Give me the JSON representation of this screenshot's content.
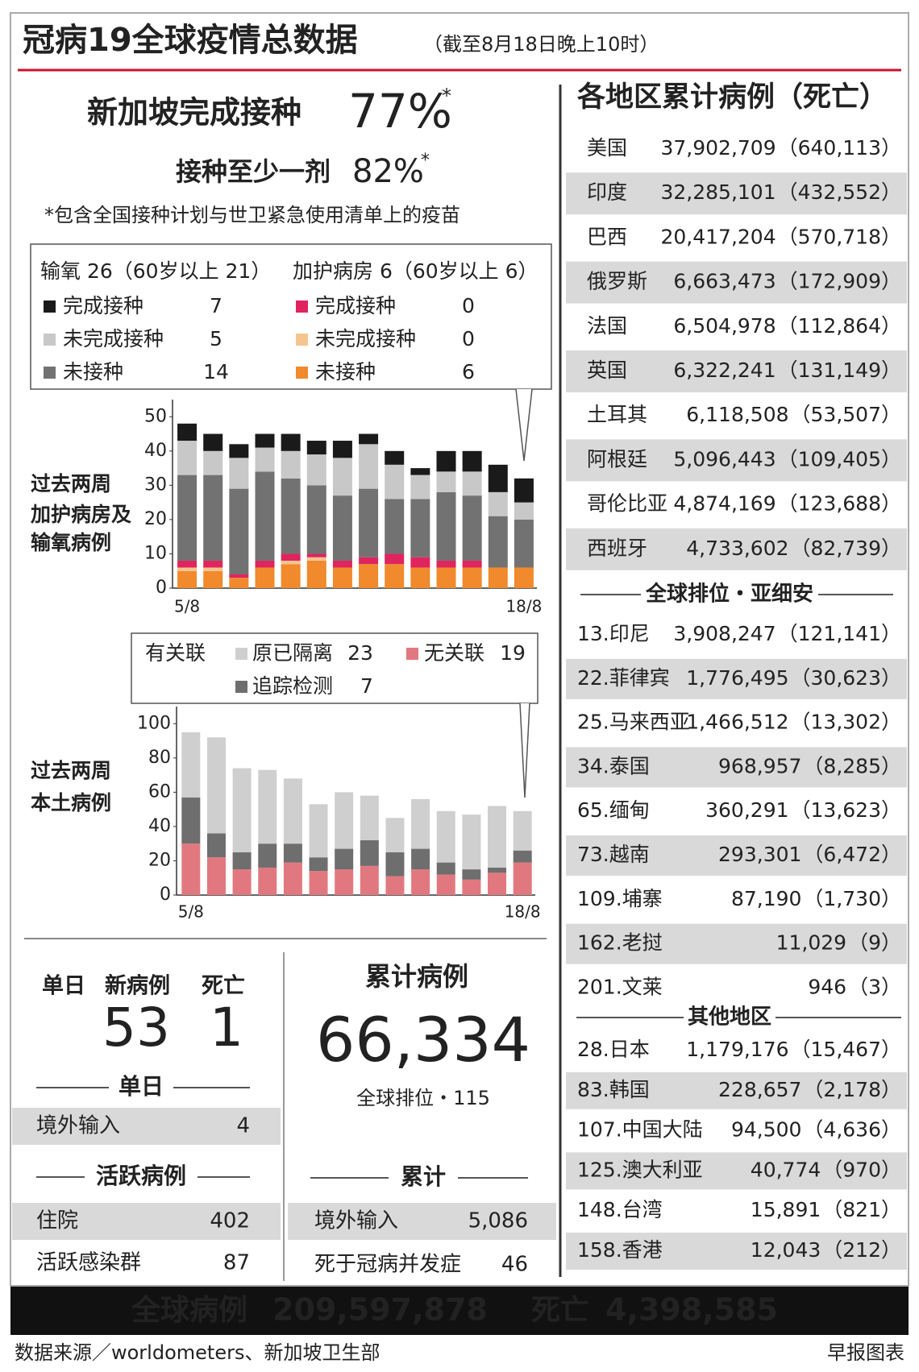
{
  "header": {
    "title": "冠病19全球疫情总数据",
    "subtitle": "（截至8月18日晚上10时）"
  },
  "vaccination": {
    "full_label": "新加坡完成接种",
    "full_value": "77%",
    "partial_label": "接种至少一剂",
    "partial_value": "82%",
    "asterisk": "*",
    "note": "*包含全国接种计划与世卫紧急使用清单上的疫苗"
  },
  "chart_data": [
    {
      "type": "bar",
      "stacked": true,
      "ylabel": [
        "过去两周",
        "加护病房及",
        "输氧病例"
      ],
      "categories": [
        "5/8",
        null,
        null,
        null,
        null,
        null,
        null,
        null,
        null,
        null,
        null,
        null,
        null,
        "18/8"
      ],
      "ylim": [
        0,
        55
      ],
      "yticks": [
        0,
        10,
        20,
        30,
        40,
        50
      ],
      "groups": [
        {
          "title": "输氧 26（60岁以上 21）",
          "series": [
            {
              "name": "完成接种",
              "color": "#1a1a1a",
              "values": [
                5,
                5,
                4,
                4,
                5,
                4,
                5,
                3,
                4,
                2,
                6,
                6,
                8,
                7
              ]
            },
            {
              "name": "未完成接种",
              "color": "#c8c8c8",
              "values": [
                10,
                7,
                9,
                7,
                8,
                9,
                11,
                13,
                10,
                7,
                6,
                7,
                7,
                5
              ]
            },
            {
              "name": "未接种",
              "color": "#727272",
              "values": [
                25,
                25,
                25,
                26,
                22,
                20,
                19,
                20,
                16,
                17,
                20,
                19,
                15,
                14
              ]
            }
          ]
        },
        {
          "title": "加护病房 6（60岁以上 6）",
          "series": [
            {
              "name": "完成接种",
              "color": "#e0245e",
              "values": [
                2,
                2,
                1,
                2,
                2,
                1,
                2,
                2,
                3,
                3,
                2,
                2,
                0,
                0
              ]
            },
            {
              "name": "未完成接种",
              "color": "#f5c48f",
              "values": [
                1,
                1,
                0,
                0,
                1,
                1,
                0,
                0,
                0,
                0,
                0,
                0,
                0,
                0
              ]
            },
            {
              "name": "未接种",
              "color": "#f08a2c",
              "values": [
                5,
                5,
                3,
                6,
                7,
                8,
                6,
                7,
                7,
                6,
                6,
                6,
                6,
                6
              ]
            }
          ]
        }
      ]
    },
    {
      "type": "bar",
      "stacked": true,
      "ylabel": [
        "过去两周",
        "本土病例"
      ],
      "legend_title": "有关联",
      "categories": [
        "5/8",
        null,
        null,
        null,
        null,
        null,
        null,
        null,
        null,
        null,
        null,
        null,
        null,
        "18/8"
      ],
      "ylim": [
        0,
        110
      ],
      "yticks": [
        0,
        20,
        40,
        60,
        80,
        100
      ],
      "series": [
        {
          "name": "无关联",
          "color": "#e2787f",
          "values": [
            30,
            22,
            15,
            16,
            19,
            14,
            15,
            17,
            11,
            15,
            12,
            9,
            13,
            19
          ]
        },
        {
          "name": "追踪检测",
          "color": "#6e6e6e",
          "values": [
            27,
            14,
            10,
            14,
            11,
            8,
            12,
            15,
            14,
            12,
            7,
            6,
            3,
            7
          ]
        },
        {
          "name": "原已隔离",
          "color": "#cfcfcf",
          "values": [
            38,
            56,
            49,
            43,
            38,
            31,
            33,
            26,
            20,
            29,
            30,
            32,
            36,
            23
          ]
        }
      ]
    }
  ],
  "daily": {
    "heading": [
      "单日",
      "新病例",
      "死亡"
    ],
    "new_cases": "53",
    "deaths": "1",
    "section1": "单日",
    "rows1": [
      [
        "境外输入",
        "4"
      ]
    ],
    "section2": "活跃病例",
    "rows2": [
      [
        "住院",
        "402"
      ],
      [
        "活跃感染群",
        "87"
      ]
    ]
  },
  "cumulative": {
    "title": "累计病例",
    "value": "66,334",
    "rank": "全球排位・115",
    "section": "累计",
    "rows": [
      [
        "境外输入",
        "5,086"
      ],
      [
        "死于冠病并发症",
        "46"
      ]
    ]
  },
  "regions": {
    "title": "各地区累计病例（死亡）",
    "top": [
      {
        "name": "美国",
        "cases": "37,902,709",
        "deaths": "（640,113）"
      },
      {
        "name": "印度",
        "cases": "32,285,101",
        "deaths": "（432,552）"
      },
      {
        "name": "巴西",
        "cases": "20,417,204",
        "deaths": "（570,718）"
      },
      {
        "name": "俄罗斯",
        "cases": "6,663,473",
        "deaths": "（172,909）"
      },
      {
        "name": "法国",
        "cases": "6,504,978",
        "deaths": "（112,864）"
      },
      {
        "name": "英国",
        "cases": "6,322,241",
        "deaths": "（131,149）"
      },
      {
        "name": "土耳其",
        "cases": "6,118,508",
        "deaths": "（53,507）"
      },
      {
        "name": "阿根廷",
        "cases": "5,096,443",
        "deaths": "（109,405）"
      },
      {
        "name": "哥伦比亚",
        "cases": "4,874,169",
        "deaths": "（123,688）"
      },
      {
        "name": "西班牙",
        "cases": "4,733,602",
        "deaths": "（82,739）"
      }
    ],
    "asean_heading": "全球排位・亚细安",
    "asean": [
      {
        "name": "13.印尼",
        "cases": "3,908,247",
        "deaths": "（121,141）"
      },
      {
        "name": "22.菲律宾",
        "cases": "1,776,495",
        "deaths": "（30,623）"
      },
      {
        "name": "25.马来西亚",
        "cases": "1,466,512",
        "deaths": "（13,302）"
      },
      {
        "name": "34.泰国",
        "cases": "968,957",
        "deaths": "（8,285）"
      },
      {
        "name": "65.缅甸",
        "cases": "360,291",
        "deaths": "（13,623）"
      },
      {
        "name": "73.越南",
        "cases": "293,301",
        "deaths": "（6,472）"
      },
      {
        "name": "109.埔寨",
        "cases": "87,190",
        "deaths": "（1,730）"
      },
      {
        "name": "162.老挝",
        "cases": "11,029",
        "deaths": "（9）"
      },
      {
        "name": "201.文莱",
        "cases": "946",
        "deaths": "（3）"
      }
    ],
    "other_heading": "其他地区",
    "other": [
      {
        "name": "28.日本",
        "cases": "1,179,176",
        "deaths": "（15,467）"
      },
      {
        "name": "83.韩国",
        "cases": "228,657",
        "deaths": "（2,178）"
      },
      {
        "name": "107.中国大陆",
        "cases": "94,500",
        "deaths": "（4,636）"
      },
      {
        "name": "125.澳大利亚",
        "cases": "40,774",
        "deaths": "（970）"
      },
      {
        "name": "148.台湾",
        "cases": "15,891",
        "deaths": "（821）"
      },
      {
        "name": "158.香港",
        "cases": "12,043",
        "deaths": "（212）"
      }
    ]
  },
  "footer": {
    "cases_label": "全球病例",
    "cases": "209,597,878",
    "deaths_label": "死亡",
    "deaths": "4,398,585",
    "source": "数据来源／worldometers、新加坡卫生部",
    "credit": "早报图表"
  }
}
